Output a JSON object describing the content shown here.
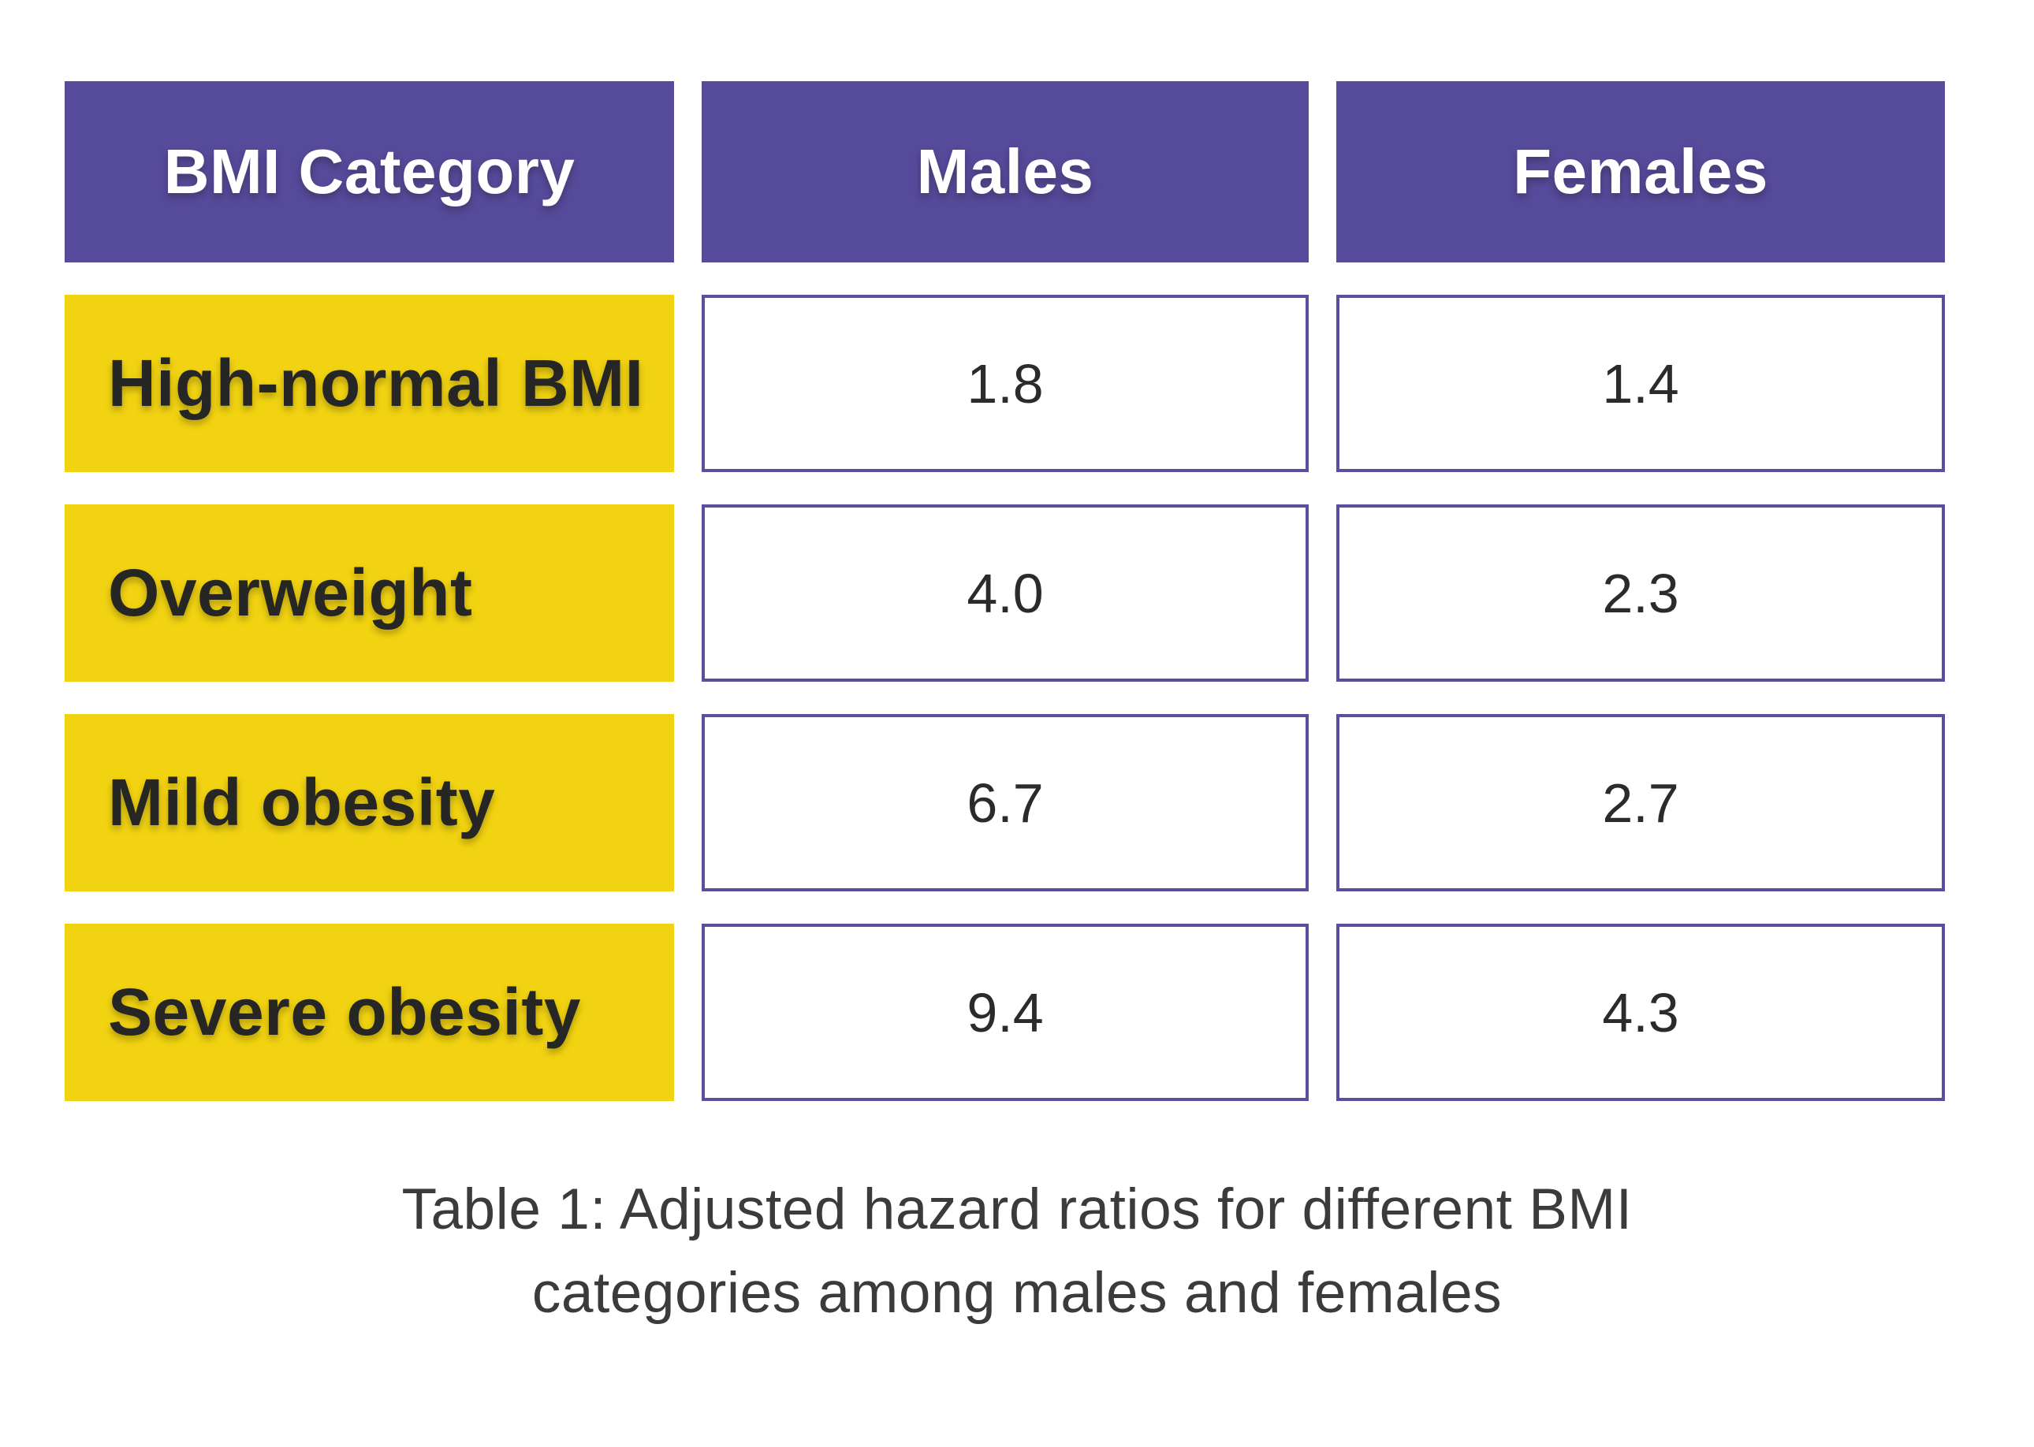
{
  "table": {
    "columns": [
      "BMI Category",
      "Males",
      "Females"
    ],
    "rows": [
      {
        "category": "High-normal BMI",
        "males": "1.8",
        "females": "1.4"
      },
      {
        "category": "Overweight",
        "males": "4.0",
        "females": "2.3"
      },
      {
        "category": "Mild obesity",
        "males": "6.7",
        "females": "2.7"
      },
      {
        "category": "Severe obesity",
        "males": "9.4",
        "females": "4.3"
      }
    ]
  },
  "caption": {
    "line1": "Table 1: Adjusted hazard ratios for different BMI",
    "line2": "categories among males and females"
  },
  "colors": {
    "header_bg": "#564A9B",
    "row_label_bg": "#F2D311",
    "value_cell_border": "#5A4F9E",
    "header_text": "#FFFFFF",
    "label_text": "#262624",
    "value_text": "#2B2B2B",
    "caption_text": "#3B3B3B",
    "background": "#FFFFFF"
  },
  "chart_data": {
    "type": "table",
    "title": "Table 1: Adjusted hazard ratios for different BMI categories among males and females",
    "columns": [
      "BMI Category",
      "Males",
      "Females"
    ],
    "rows": [
      [
        "High-normal BMI",
        1.8,
        1.4
      ],
      [
        "Overweight",
        4.0,
        2.3
      ],
      [
        "Mild obesity",
        6.7,
        2.7
      ],
      [
        "Severe obesity",
        9.4,
        4.3
      ]
    ],
    "legend_position": "none",
    "grid": false
  }
}
